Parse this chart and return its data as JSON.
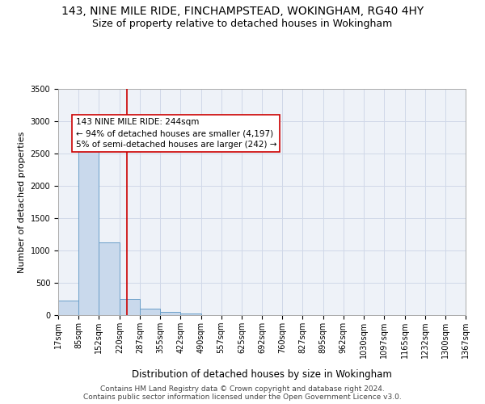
{
  "title": "143, NINE MILE RIDE, FINCHAMPSTEAD, WOKINGHAM, RG40 4HY",
  "subtitle": "Size of property relative to detached houses in Wokingham",
  "xlabel": "Distribution of detached houses by size in Wokingham",
  "ylabel": "Number of detached properties",
  "bar_color": "#c9d9ec",
  "bar_edge_color": "#6a9fc8",
  "grid_color": "#d0d8e8",
  "background_color": "#eef2f8",
  "annotation_text": "143 NINE MILE RIDE: 244sqm\n← 94% of detached houses are smaller (4,197)\n5% of semi-detached houses are larger (242) →",
  "vline_x": 244,
  "vline_color": "#cc0000",
  "ylim": [
    0,
    3500
  ],
  "yticks": [
    0,
    500,
    1000,
    1500,
    2000,
    2500,
    3000,
    3500
  ],
  "bin_edges": [
    17,
    85,
    152,
    220,
    287,
    355,
    422,
    490,
    557,
    625,
    692,
    760,
    827,
    895,
    962,
    1030,
    1097,
    1165,
    1232,
    1300,
    1367
  ],
  "bin_labels": [
    "17sqm",
    "85sqm",
    "152sqm",
    "220sqm",
    "287sqm",
    "355sqm",
    "422sqm",
    "490sqm",
    "557sqm",
    "625sqm",
    "692sqm",
    "760sqm",
    "827sqm",
    "895sqm",
    "962sqm",
    "1030sqm",
    "1097sqm",
    "1165sqm",
    "1232sqm",
    "1300sqm",
    "1367sqm"
  ],
  "bar_heights": [
    230,
    2630,
    1120,
    250,
    100,
    55,
    25,
    5,
    2,
    1,
    0,
    0,
    0,
    0,
    0,
    0,
    0,
    0,
    0,
    0
  ],
  "footer_text": "Contains HM Land Registry data © Crown copyright and database right 2024.\nContains public sector information licensed under the Open Government Licence v3.0.",
  "annotation_box_color": "#ffffff",
  "annotation_box_edge_color": "#cc0000",
  "title_fontsize": 10,
  "subtitle_fontsize": 9,
  "tick_fontsize": 7,
  "ylabel_fontsize": 8,
  "xlabel_fontsize": 8.5,
  "footer_fontsize": 6.5,
  "annotation_fontsize": 7.5
}
